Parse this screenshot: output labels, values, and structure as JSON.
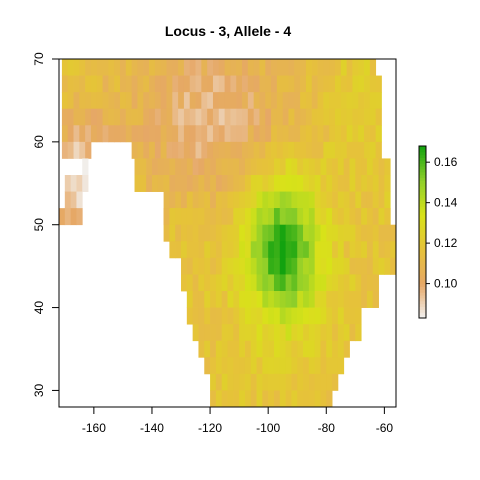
{
  "chart_data": {
    "type": "heatmap",
    "title": "Locus - 3, Allele - 4",
    "xlabel": "",
    "ylabel": "",
    "xlim": [
      -172,
      -56
    ],
    "ylim": [
      28,
      70
    ],
    "x_ticks": [
      -160,
      -140,
      -120,
      -100,
      -80,
      -60
    ],
    "y_ticks": [
      30,
      40,
      50,
      60,
      70
    ],
    "cell_size_deg": 2,
    "colorbar": {
      "range": [
        0.083,
        0.168
      ],
      "ticks": [
        0.1,
        0.12,
        0.14,
        0.16
      ],
      "tick_labels": [
        "0.10",
        "0.12",
        "0.14",
        "0.16"
      ],
      "colors": [
        "#f2f2f2",
        "#e6a866",
        "#e6c23a",
        "#d8e219",
        "#8fcf2a",
        "#12a20f"
      ]
    },
    "region_rows": [
      {
        "lat": 69,
        "lon_min": -170,
        "lon_max": -63
      },
      {
        "lat": 67,
        "lon_min": -170,
        "lon_max": -61
      },
      {
        "lat": 65,
        "lon_min": -170,
        "lon_max": -61
      },
      {
        "lat": 63,
        "lon_min": -170,
        "lon_max": -61
      },
      {
        "lat": 61,
        "lon_min": -170,
        "lon_max": -61
      },
      {
        "lat": 59,
        "lon_min": -170,
        "lon_max": -61
      },
      {
        "lat": 57,
        "lon_min": -163,
        "lon_max": -59
      },
      {
        "lat": 55,
        "lon_min": -169,
        "lon_max": -59
      },
      {
        "lat": 53,
        "lon_min": -169,
        "lon_max": -59
      },
      {
        "lat": 51,
        "lon_min": -171,
        "lon_max": -59
      },
      {
        "lat": 51,
        "lon_min": -137,
        "lon_max": -59
      },
      {
        "lat": 49,
        "lon_min": -135,
        "lon_max": -57
      },
      {
        "lat": 47,
        "lon_min": -133,
        "lon_max": -57
      },
      {
        "lat": 45,
        "lon_min": -129,
        "lon_max": -57
      },
      {
        "lat": 43,
        "lon_min": -129,
        "lon_max": -63
      },
      {
        "lat": 41,
        "lon_min": -127,
        "lon_max": -63
      },
      {
        "lat": 39,
        "lon_min": -127,
        "lon_max": -69
      },
      {
        "lat": 37,
        "lon_min": -125,
        "lon_max": -69
      },
      {
        "lat": 35,
        "lon_min": -123,
        "lon_max": -73
      },
      {
        "lat": 33,
        "lon_min": -121,
        "lon_max": -75
      },
      {
        "lat": 31,
        "lon_min": -119,
        "lon_max": -77
      },
      {
        "lat": 29,
        "lon_min": -119,
        "lon_max": -79
      }
    ],
    "holes": [
      {
        "lat_min": 54,
        "lat_max": 60,
        "lon_min": -161,
        "lon_max": -147
      },
      {
        "lat_min": 50,
        "lat_max": 54,
        "lon_min": -163,
        "lon_max": -137
      }
    ],
    "value_field": {
      "base": 0.118,
      "components": [
        {
          "center": [
            -95,
            47
          ],
          "spread": [
            13,
            9
          ],
          "amplitude": 0.048
        },
        {
          "center": [
            -120,
            63
          ],
          "spread": [
            30,
            10
          ],
          "amplitude": -0.022
        },
        {
          "center": [
            -165,
            55
          ],
          "spread": [
            12,
            8
          ],
          "amplitude": -0.03
        },
        {
          "center": [
            -70,
            64
          ],
          "spread": [
            12,
            8
          ],
          "amplitude": 0.005
        }
      ],
      "min": 0.083,
      "max": 0.168
    }
  }
}
